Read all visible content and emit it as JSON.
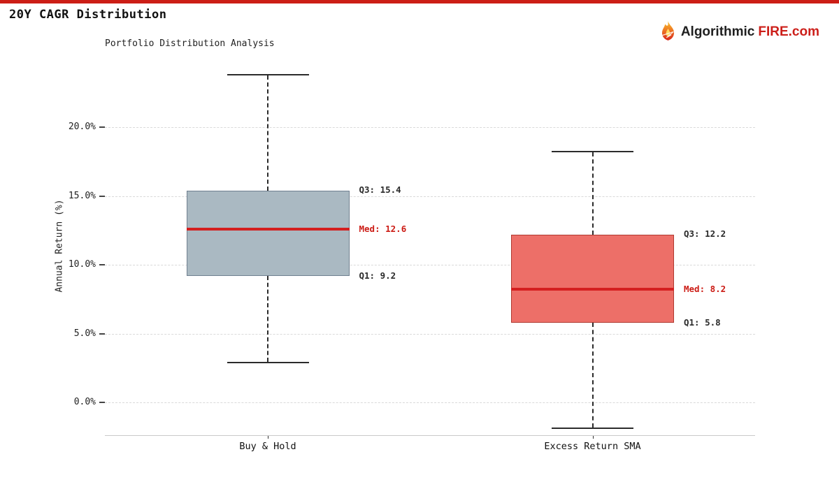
{
  "page": {
    "title": "20Y CAGR Distribution",
    "accent_red": "#cc1e16",
    "logo": {
      "text_dark": "Algorithmic",
      "text_red": "FIRE.com"
    }
  },
  "chart_data": {
    "type": "boxplot",
    "title": "Portfolio Distribution Analysis",
    "ylabel": "Annual Return (%)",
    "yticks": [
      0,
      5,
      10,
      15,
      20
    ],
    "ytick_labels": [
      "0.0%",
      "5.0%",
      "10.0%",
      "15.0%",
      "20.0%"
    ],
    "ylim": [
      -2.4,
      24.9
    ],
    "grid": "horizontal-dashed",
    "legend": "none",
    "categories": [
      "Buy & Hold",
      "Excess Return SMA"
    ],
    "series": [
      {
        "name": "Buy & Hold",
        "whisker_high": 23.8,
        "q3": 15.4,
        "median": 12.6,
        "q1": 9.2,
        "whisker_low": 2.9,
        "q3_label": "Q3: 15.4",
        "med_label": "Med: 12.6",
        "q1_label": "Q1: 9.2",
        "box_color": "#aab9c2",
        "border_color": "#708090",
        "median_color": "#d41f1f"
      },
      {
        "name": "Excess Return SMA",
        "whisker_high": 18.2,
        "q3": 12.2,
        "median": 8.2,
        "q1": 5.8,
        "whisker_low": -1.9,
        "q3_label": "Q3: 12.2",
        "med_label": "Med: 8.2",
        "q1_label": "Q1: 5.8",
        "box_color": "#ed6f68",
        "border_color": "#b03a30",
        "median_color": "#d41f1f"
      }
    ]
  }
}
